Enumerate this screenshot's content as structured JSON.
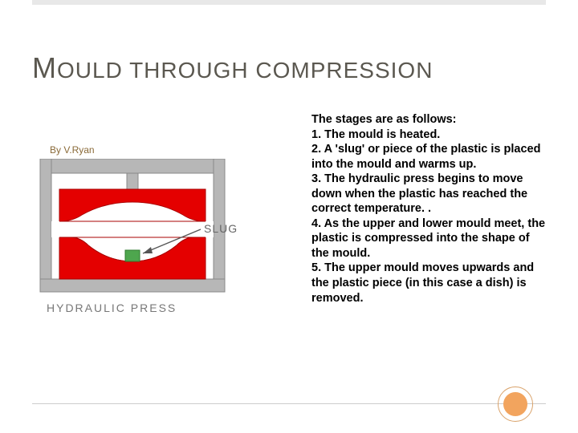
{
  "title_html": "<span class=\"first\">M</span>OULD THROUGH COMPRESSION",
  "intro": "The stages are as follows:",
  "steps": [
    "1. The mould is heated.",
    "2. A 'slug' or piece of the plastic is placed into the mould and warms up.",
    "3. The hydraulic press begins to move down when the plastic has reached the correct temperature. .",
    "4. As the upper and lower mould meet, the plastic is compressed into the shape of the mould.",
    "5. The upper mould moves upwards and the plastic piece (in this case a dish) is removed."
  ],
  "diagram": {
    "byline": "By V.Ryan",
    "caption": "HYDRAULIC PRESS",
    "slug_label": "SLUG",
    "colors": {
      "press_frame": "#b7b7b7",
      "press_frame_stroke": "#888888",
      "mould_red": "#e40000",
      "mould_cavity": "#ffffff",
      "slug": "#4ea64e",
      "slug_stroke": "#2d7a2d",
      "arrow": "#555555"
    }
  },
  "title_color": "#5b5850",
  "accent_color": "#f2a45e"
}
